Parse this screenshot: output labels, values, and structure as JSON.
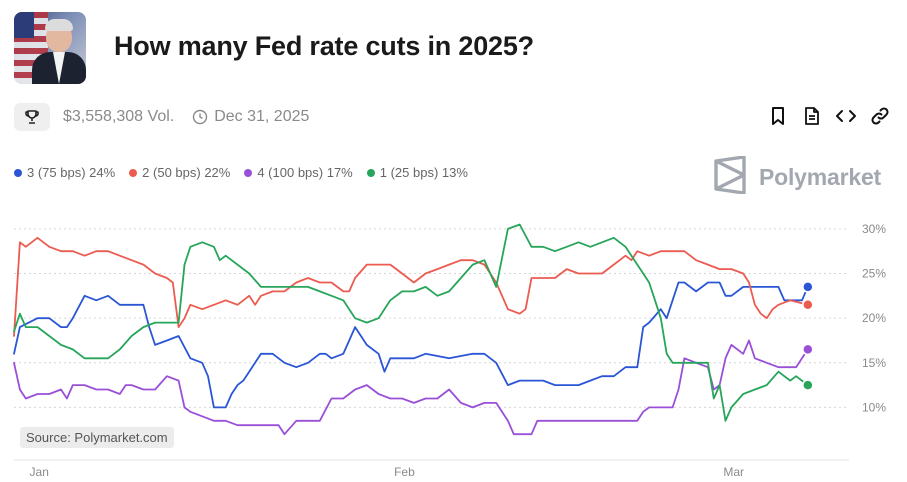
{
  "header": {
    "title": "How many Fed rate cuts in 2025?",
    "volume": "$3,558,308 Vol.",
    "end_date": "Dec 31, 2025"
  },
  "brand": {
    "name": "Polymarket"
  },
  "source": "Source: Polymarket.com",
  "icons": [
    "trophy-icon",
    "clock-icon",
    "bookmark-icon",
    "document-icon",
    "embed-code-icon",
    "link-icon",
    "polymarket-logo-icon"
  ],
  "legend": [
    {
      "label": "3 (75 bps) 24%",
      "color": "#2a56d6"
    },
    {
      "label": "2 (50 bps) 22%",
      "color": "#ec5b50"
    },
    {
      "label": "4 (100 bps) 17%",
      "color": "#9a4fd8"
    },
    {
      "label": "1 (25 bps) 13%",
      "color": "#27a55a"
    }
  ],
  "chart_data": {
    "type": "line",
    "x_ticks": [
      "Jan",
      "Feb",
      "Mar"
    ],
    "x_tick_days": [
      0,
      31,
      59
    ],
    "x_range_days": [
      -2,
      69
    ],
    "ylim": [
      5,
      31
    ],
    "y_ticks": [
      10,
      15,
      20,
      25,
      30
    ],
    "y_tick_labels": [
      "10%",
      "15%",
      "20%",
      "25%",
      "30%"
    ],
    "y_side": "right",
    "grid": "horizontal dashed",
    "series": [
      {
        "name": "3 (75 bps)",
        "color": "#2a56d6",
        "points": [
          [
            -2,
            16
          ],
          [
            -1.5,
            19
          ],
          [
            0,
            20
          ],
          [
            1,
            20
          ],
          [
            2,
            19
          ],
          [
            2.5,
            19
          ],
          [
            3,
            20
          ],
          [
            4,
            22.5
          ],
          [
            5,
            22
          ],
          [
            6,
            22.5
          ],
          [
            7,
            21.5
          ],
          [
            8,
            21.5
          ],
          [
            9,
            21.5
          ],
          [
            9.5,
            19
          ],
          [
            10,
            17
          ],
          [
            11,
            17.5
          ],
          [
            12,
            18
          ],
          [
            13,
            15.5
          ],
          [
            14,
            15
          ],
          [
            14.5,
            13.5
          ],
          [
            15,
            10
          ],
          [
            16,
            10
          ],
          [
            16.5,
            11.5
          ],
          [
            17,
            12.5
          ],
          [
            17.5,
            13
          ],
          [
            18,
            14
          ],
          [
            19,
            16
          ],
          [
            20,
            16
          ],
          [
            21,
            15
          ],
          [
            22,
            14.5
          ],
          [
            23,
            15
          ],
          [
            24,
            16
          ],
          [
            24.5,
            16
          ],
          [
            25,
            15.5
          ],
          [
            26,
            16
          ],
          [
            26.5,
            17.5
          ],
          [
            27,
            19
          ],
          [
            28,
            17
          ],
          [
            29,
            16
          ],
          [
            29.5,
            14
          ],
          [
            30,
            15.5
          ],
          [
            31,
            15.5
          ],
          [
            32,
            15.5
          ],
          [
            33,
            16
          ],
          [
            35,
            15.5
          ],
          [
            37,
            16
          ],
          [
            38,
            16
          ],
          [
            39,
            15
          ],
          [
            40,
            12.5
          ],
          [
            41,
            13
          ],
          [
            43,
            13
          ],
          [
            44,
            12.5
          ],
          [
            46,
            12.5
          ],
          [
            47,
            13
          ],
          [
            48,
            13.5
          ],
          [
            49,
            13.5
          ],
          [
            50,
            14.5
          ],
          [
            51,
            14.5
          ],
          [
            51.5,
            19
          ],
          [
            52,
            19.5
          ],
          [
            53,
            21
          ],
          [
            53.5,
            20
          ],
          [
            54,
            22
          ],
          [
            54.5,
            24
          ],
          [
            55,
            24
          ],
          [
            56,
            23
          ],
          [
            57,
            24
          ],
          [
            58,
            24
          ],
          [
            58.5,
            22.5
          ],
          [
            59,
            22.5
          ],
          [
            60,
            23.5
          ],
          [
            62,
            23.5
          ],
          [
            63,
            23.5
          ],
          [
            63.5,
            22
          ],
          [
            64,
            22
          ],
          [
            65,
            22
          ],
          [
            65.5,
            23.5
          ]
        ]
      },
      {
        "name": "2 (50 bps)",
        "color": "#ec5b50",
        "points": [
          [
            -2,
            18
          ],
          [
            -1.5,
            28.5
          ],
          [
            -1,
            28
          ],
          [
            0,
            29
          ],
          [
            1,
            28
          ],
          [
            2,
            27.5
          ],
          [
            3,
            27.5
          ],
          [
            4,
            27
          ],
          [
            5,
            27.5
          ],
          [
            6,
            27.5
          ],
          [
            7,
            27
          ],
          [
            8,
            26.5
          ],
          [
            9,
            26
          ],
          [
            10,
            25
          ],
          [
            11,
            24.5
          ],
          [
            11.5,
            24
          ],
          [
            12,
            19
          ],
          [
            12.5,
            20
          ],
          [
            13,
            21.5
          ],
          [
            14,
            21
          ],
          [
            15,
            21.5
          ],
          [
            16,
            22
          ],
          [
            17,
            21.5
          ],
          [
            18,
            22.5
          ],
          [
            18.5,
            21.5
          ],
          [
            19,
            22.5
          ],
          [
            20,
            23
          ],
          [
            21,
            23
          ],
          [
            22,
            24
          ],
          [
            23,
            24.5
          ],
          [
            24,
            24
          ],
          [
            25,
            24
          ],
          [
            26,
            23
          ],
          [
            26.5,
            23
          ],
          [
            27,
            24.5
          ],
          [
            28,
            26
          ],
          [
            29,
            26
          ],
          [
            30,
            26
          ],
          [
            31,
            25
          ],
          [
            32,
            24
          ],
          [
            33,
            25
          ],
          [
            34,
            25.5
          ],
          [
            35,
            26
          ],
          [
            36,
            26.5
          ],
          [
            37,
            26.5
          ],
          [
            38,
            26
          ],
          [
            39,
            24
          ],
          [
            40,
            21
          ],
          [
            41,
            20.5
          ],
          [
            41.5,
            21
          ],
          [
            42,
            24.5
          ],
          [
            43,
            24.5
          ],
          [
            44,
            24.5
          ],
          [
            45,
            25.5
          ],
          [
            46,
            25
          ],
          [
            47,
            25
          ],
          [
            48,
            25
          ],
          [
            49,
            26
          ],
          [
            50,
            27
          ],
          [
            50.5,
            26.5
          ],
          [
            51,
            27.5
          ],
          [
            52,
            27
          ],
          [
            53,
            27.5
          ],
          [
            54,
            27.5
          ],
          [
            55,
            27.5
          ],
          [
            56,
            26.5
          ],
          [
            57,
            26
          ],
          [
            58,
            25.5
          ],
          [
            59,
            25.5
          ],
          [
            60,
            25
          ],
          [
            60.5,
            24
          ],
          [
            61,
            21.5
          ],
          [
            61.5,
            20.5
          ],
          [
            62,
            20
          ],
          [
            62.5,
            21
          ],
          [
            63,
            21.5
          ],
          [
            64,
            22
          ],
          [
            65.5,
            21.5
          ]
        ]
      },
      {
        "name": "4 (100 bps)",
        "color": "#9a4fd8",
        "points": [
          [
            -2,
            15
          ],
          [
            -1.5,
            12
          ],
          [
            -1,
            11
          ],
          [
            0,
            11.5
          ],
          [
            1,
            11.5
          ],
          [
            2,
            12
          ],
          [
            2.5,
            11
          ],
          [
            3,
            12.5
          ],
          [
            4,
            12.5
          ],
          [
            5,
            12
          ],
          [
            6,
            12
          ],
          [
            7,
            11.5
          ],
          [
            7.5,
            12.5
          ],
          [
            8,
            12.5
          ],
          [
            9,
            12
          ],
          [
            10,
            12
          ],
          [
            11,
            13.5
          ],
          [
            12,
            13
          ],
          [
            12.5,
            10
          ],
          [
            13,
            9.5
          ],
          [
            14,
            9
          ],
          [
            15,
            8.5
          ],
          [
            16,
            8.5
          ],
          [
            17,
            8
          ],
          [
            18,
            8
          ],
          [
            19,
            8
          ],
          [
            20,
            8
          ],
          [
            20.5,
            8
          ],
          [
            21,
            7
          ],
          [
            22,
            8.5
          ],
          [
            23,
            8.5
          ],
          [
            24,
            8.5
          ],
          [
            25,
            11
          ],
          [
            26,
            11
          ],
          [
            27,
            12
          ],
          [
            28,
            12.5
          ],
          [
            29,
            11.5
          ],
          [
            30,
            11
          ],
          [
            31,
            11
          ],
          [
            32,
            10.5
          ],
          [
            33,
            11
          ],
          [
            34,
            11
          ],
          [
            35,
            12
          ],
          [
            36,
            10.5
          ],
          [
            37,
            10
          ],
          [
            38,
            10.5
          ],
          [
            39,
            10.5
          ],
          [
            40,
            8.5
          ],
          [
            40.5,
            7
          ],
          [
            41,
            7
          ],
          [
            42,
            7
          ],
          [
            42.5,
            8.5
          ],
          [
            43,
            8.5
          ],
          [
            44,
            8.5
          ],
          [
            46,
            8.5
          ],
          [
            48,
            8.5
          ],
          [
            50,
            8.5
          ],
          [
            51,
            8.5
          ],
          [
            51.5,
            9.5
          ],
          [
            52,
            10
          ],
          [
            53,
            10
          ],
          [
            54,
            10
          ],
          [
            54.5,
            12
          ],
          [
            55,
            15.5
          ],
          [
            56,
            15
          ],
          [
            57,
            14.5
          ],
          [
            57.5,
            12
          ],
          [
            58,
            12.5
          ],
          [
            58.5,
            15.5
          ],
          [
            59,
            17
          ],
          [
            60,
            16
          ],
          [
            60.5,
            17.5
          ],
          [
            61,
            15.5
          ],
          [
            62,
            15
          ],
          [
            63,
            14.5
          ],
          [
            64,
            14.5
          ],
          [
            64.5,
            14.5
          ],
          [
            65.5,
            16.5
          ]
        ]
      },
      {
        "name": "1 (25 bps)",
        "color": "#27a55a",
        "points": [
          [
            -2,
            18.5
          ],
          [
            -1.5,
            20.5
          ],
          [
            -1,
            19
          ],
          [
            0,
            19
          ],
          [
            1,
            18
          ],
          [
            2,
            17
          ],
          [
            3,
            16.5
          ],
          [
            4,
            15.5
          ],
          [
            5,
            15.5
          ],
          [
            6,
            15.5
          ],
          [
            7,
            16.5
          ],
          [
            8,
            18
          ],
          [
            9,
            19
          ],
          [
            10,
            19.5
          ],
          [
            11,
            19.5
          ],
          [
            12,
            19.5
          ],
          [
            12.5,
            26
          ],
          [
            13,
            28
          ],
          [
            14,
            28.5
          ],
          [
            15,
            28
          ],
          [
            15.5,
            26.5
          ],
          [
            16,
            27
          ],
          [
            17,
            26
          ],
          [
            18,
            25
          ],
          [
            19,
            23.5
          ],
          [
            20,
            23.5
          ],
          [
            21,
            23.5
          ],
          [
            22,
            23.5
          ],
          [
            23,
            23.5
          ],
          [
            24,
            23
          ],
          [
            25,
            22.5
          ],
          [
            26,
            22
          ],
          [
            27,
            20
          ],
          [
            28,
            19.5
          ],
          [
            29,
            20
          ],
          [
            30,
            22
          ],
          [
            31,
            23
          ],
          [
            32,
            23
          ],
          [
            33,
            23.5
          ],
          [
            34,
            22.5
          ],
          [
            35,
            23
          ],
          [
            36,
            24.5
          ],
          [
            37,
            26
          ],
          [
            38,
            26.5
          ],
          [
            39,
            23.5
          ],
          [
            40,
            30
          ],
          [
            41,
            30.5
          ],
          [
            42,
            28
          ],
          [
            43,
            28
          ],
          [
            44,
            27.5
          ],
          [
            45,
            28
          ],
          [
            46,
            28.5
          ],
          [
            47,
            28
          ],
          [
            48,
            28.5
          ],
          [
            49,
            29
          ],
          [
            50,
            28
          ],
          [
            51,
            26
          ],
          [
            51.5,
            25
          ],
          [
            52,
            24
          ],
          [
            52.5,
            22
          ],
          [
            53,
            20
          ],
          [
            53.5,
            16
          ],
          [
            54,
            15
          ],
          [
            55,
            15
          ],
          [
            56,
            15
          ],
          [
            57,
            15
          ],
          [
            57.5,
            11
          ],
          [
            58,
            12.5
          ],
          [
            58.5,
            8.5
          ],
          [
            59,
            10
          ],
          [
            60,
            11.5
          ],
          [
            61,
            12
          ],
          [
            62,
            12.5
          ],
          [
            63,
            14
          ],
          [
            64,
            13
          ],
          [
            64.5,
            13.5
          ],
          [
            65.5,
            12.5
          ]
        ]
      }
    ]
  }
}
